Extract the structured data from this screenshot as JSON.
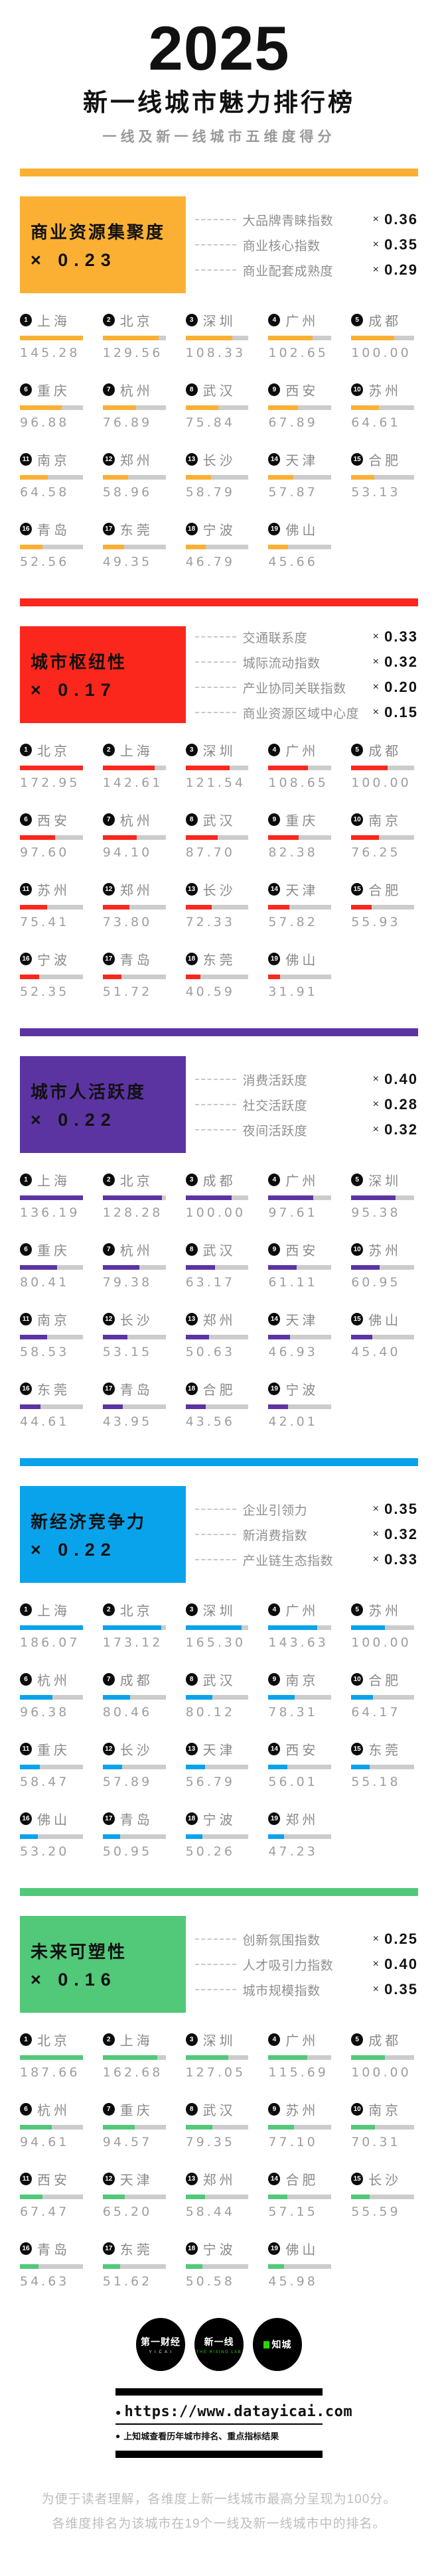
{
  "header": {
    "year": "2025",
    "title": "新一线城市魅力排行榜",
    "subtitle": "一线及新一线城市五维度得分"
  },
  "ui": {
    "times_symbol": "×",
    "ranks": [
      "1",
      "2",
      "3",
      "4",
      "5",
      "6",
      "7",
      "8",
      "9",
      "10",
      "11",
      "12",
      "13",
      "14",
      "15",
      "16",
      "17",
      "18",
      "19"
    ]
  },
  "chart_data": [
    {
      "type": "bar",
      "title": "商业资源集聚度",
      "weight_label": "× 0.23",
      "color": "#FBB034",
      "subindices": [
        {
          "label": "大品牌青睐指数",
          "value": "0.36"
        },
        {
          "label": "商业核心指数",
          "value": "0.35"
        },
        {
          "label": "商业配套成熟度",
          "value": "0.29"
        }
      ],
      "categories": [
        "上海",
        "北京",
        "深圳",
        "广州",
        "成都",
        "重庆",
        "杭州",
        "武汉",
        "西安",
        "苏州",
        "南京",
        "郑州",
        "长沙",
        "天津",
        "合肥",
        "青岛",
        "东莞",
        "宁波",
        "佛山"
      ],
      "values": [
        "145.28",
        "129.56",
        "108.33",
        "102.65",
        "100.00",
        "96.88",
        "76.89",
        "75.84",
        "67.89",
        "64.61",
        "64.58",
        "58.96",
        "58.79",
        "57.87",
        "53.13",
        "52.56",
        "49.35",
        "46.79",
        "45.66"
      ]
    },
    {
      "type": "bar",
      "title": "城市枢纽性",
      "weight_label": "× 0.17",
      "color": "#FB271D",
      "subindices": [
        {
          "label": "交通联系度",
          "value": "0.33"
        },
        {
          "label": "城际流动指数",
          "value": "0.32"
        },
        {
          "label": "产业协同关联指数",
          "value": "0.20"
        },
        {
          "label": "商业资源区域中心度",
          "value": "0.15"
        }
      ],
      "categories": [
        "北京",
        "上海",
        "深圳",
        "广州",
        "成都",
        "西安",
        "杭州",
        "武汉",
        "重庆",
        "南京",
        "苏州",
        "郑州",
        "长沙",
        "天津",
        "合肥",
        "宁波",
        "青岛",
        "东莞",
        "佛山"
      ],
      "values": [
        "172.95",
        "142.61",
        "121.54",
        "108.65",
        "100.00",
        "97.60",
        "94.10",
        "87.70",
        "82.38",
        "76.25",
        "75.41",
        "73.80",
        "72.33",
        "57.82",
        "55.93",
        "52.35",
        "51.72",
        "40.59",
        "31.91"
      ]
    },
    {
      "type": "bar",
      "title": "城市人活跃度",
      "weight_label": "× 0.22",
      "color": "#5C34A2",
      "subindices": [
        {
          "label": "消费活跃度",
          "value": "0.40"
        },
        {
          "label": "社交活跃度",
          "value": "0.28"
        },
        {
          "label": "夜间活跃度",
          "value": "0.32"
        }
      ],
      "categories": [
        "上海",
        "北京",
        "成都",
        "广州",
        "深圳",
        "重庆",
        "杭州",
        "武汉",
        "西安",
        "苏州",
        "南京",
        "长沙",
        "郑州",
        "天津",
        "佛山",
        "东莞",
        "青岛",
        "合肥",
        "宁波"
      ],
      "values": [
        "136.19",
        "128.28",
        "100.00",
        "97.61",
        "95.38",
        "80.41",
        "79.38",
        "63.17",
        "61.11",
        "60.95",
        "58.53",
        "53.15",
        "50.63",
        "46.93",
        "45.40",
        "44.61",
        "43.95",
        "43.56",
        "42.01"
      ]
    },
    {
      "type": "bar",
      "title": "新经济竞争力",
      "weight_label": "× 0.22",
      "color": "#09A3EC",
      "subindices": [
        {
          "label": "企业引领力",
          "value": "0.35"
        },
        {
          "label": "新消费指数",
          "value": "0.32"
        },
        {
          "label": "产业链生态指数",
          "value": "0.33"
        }
      ],
      "categories": [
        "上海",
        "北京",
        "深圳",
        "广州",
        "苏州",
        "杭州",
        "成都",
        "武汉",
        "南京",
        "合肥",
        "重庆",
        "长沙",
        "天津",
        "西安",
        "东莞",
        "佛山",
        "青岛",
        "宁波",
        "郑州"
      ],
      "values": [
        "186.07",
        "173.12",
        "165.30",
        "143.63",
        "100.00",
        "96.38",
        "80.46",
        "80.12",
        "78.31",
        "64.17",
        "58.47",
        "57.89",
        "56.79",
        "56.01",
        "55.18",
        "53.20",
        "50.95",
        "50.26",
        "47.23"
      ]
    },
    {
      "type": "bar",
      "title": "未来可塑性",
      "weight_label": "× 0.16",
      "color": "#52C879",
      "subindices": [
        {
          "label": "创新氛围指数",
          "value": "0.25"
        },
        {
          "label": "人才吸引力指数",
          "value": "0.40"
        },
        {
          "label": "城市规模指数",
          "value": "0.35"
        }
      ],
      "categories": [
        "北京",
        "上海",
        "深圳",
        "广州",
        "成都",
        "杭州",
        "重庆",
        "武汉",
        "苏州",
        "南京",
        "西安",
        "天津",
        "郑州",
        "合肥",
        "长沙",
        "青岛",
        "东莞",
        "宁波",
        "佛山"
      ],
      "values": [
        "187.66",
        "162.68",
        "127.05",
        "115.69",
        "100.00",
        "94.61",
        "94.57",
        "79.35",
        "77.10",
        "70.31",
        "67.47",
        "65.20",
        "58.44",
        "57.15",
        "55.59",
        "54.63",
        "51.62",
        "50.58",
        "45.98"
      ]
    }
  ],
  "footer": {
    "logos": [
      {
        "main": "第一财经",
        "sub": "Y I C A I"
      },
      {
        "main": "新一线",
        "sub": "THE RISING LAB"
      },
      {
        "main": "知城",
        "sub": ""
      }
    ],
    "url": "https://www.datayicai.com",
    "url_bullet": "●",
    "url_note": "上知城查看历年城市排名、重点指标结果",
    "accent_green": "#2bd600"
  },
  "notes": {
    "line1": "为便于读者理解，各维度上新一线城市最高分呈现为100分。",
    "line2": "各维度排名为该城市在19个一线及新一线城市中的排名。"
  }
}
